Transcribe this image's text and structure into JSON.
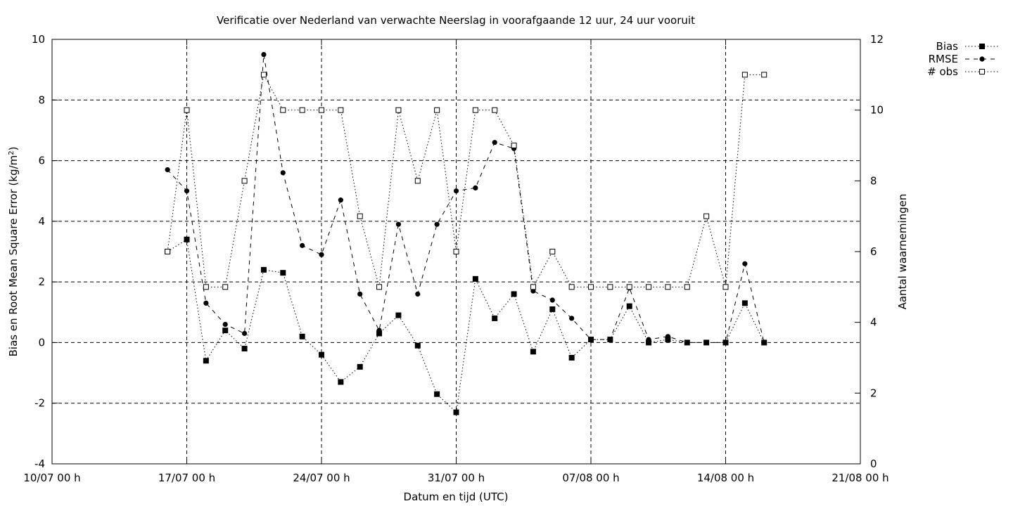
{
  "chart_data": {
    "type": "line",
    "title": "Verificatie over Nederland van verwachte Neerslag in voorafgaande 12 uur, 24 uur vooruit",
    "xlabel": "Datum en tijd (UTC)",
    "ylabel_left": "Bias en Root Mean Square Error (kg/m",
    "ylabel_left_sup": "2",
    "ylabel_left_end": ")",
    "ylabel_right": "Aantal waarnemingen",
    "x_ticks": [
      "10/07 00 h",
      "17/07 00 h",
      "24/07 00 h",
      "31/07 00 h",
      "07/08 00 h",
      "14/08 00 h",
      "21/08 00 h"
    ],
    "y_left_ticks": [
      "-4",
      "-2",
      "0",
      "2",
      "4",
      "6",
      "8",
      "10"
    ],
    "y_right_ticks": [
      "0",
      "2",
      "4",
      "6",
      "8",
      "10",
      "12"
    ],
    "y_left_range": [
      -4,
      10
    ],
    "y_right_range": [
      0,
      12
    ],
    "x_range": [
      "10/07",
      "21/08"
    ],
    "grid": true,
    "legend_position": "top-right outside",
    "x": [
      "16/07",
      "17/07",
      "18/07",
      "19/07",
      "20/07",
      "21/07",
      "22/07",
      "23/07",
      "24/07",
      "25/07",
      "26/07",
      "27/07",
      "28/07",
      "29/07",
      "30/07",
      "31/07",
      "01/08",
      "02/08",
      "03/08",
      "04/08",
      "05/08",
      "06/08",
      "07/08",
      "08/08",
      "09/08",
      "10/08",
      "11/08",
      "12/08",
      "13/08",
      "14/08",
      "15/08",
      "16/08"
    ],
    "series": [
      {
        "name": "Bias",
        "axis": "left",
        "marker": "filled-square",
        "line": "dotted",
        "values": [
          3.0,
          3.4,
          -0.6,
          0.4,
          -0.2,
          2.4,
          2.3,
          0.2,
          -0.4,
          -1.3,
          -0.8,
          0.3,
          0.9,
          -0.1,
          -1.7,
          -2.3,
          2.1,
          0.8,
          1.6,
          -0.3,
          1.1,
          -0.5,
          0.1,
          0.1,
          1.2,
          0.0,
          0.1,
          0.0,
          0.0,
          0.0,
          1.3,
          0.0
        ]
      },
      {
        "name": "RMSE",
        "axis": "left",
        "marker": "filled-circle",
        "line": "dashed",
        "values": [
          5.7,
          5.0,
          1.3,
          0.6,
          0.3,
          9.5,
          5.6,
          3.2,
          2.9,
          4.7,
          1.6,
          0.4,
          3.9,
          1.6,
          3.9,
          5.0,
          5.1,
          6.6,
          6.4,
          1.7,
          1.4,
          0.8,
          0.1,
          0.1,
          1.8,
          0.1,
          0.2,
          0.0,
          0.0,
          0.0,
          2.6,
          0.0
        ]
      },
      {
        "name": "# obs",
        "axis": "right",
        "marker": "open-square",
        "line": "dotted",
        "values": [
          6,
          10,
          5,
          5,
          8,
          11,
          10,
          10,
          10,
          10,
          7,
          5,
          10,
          8,
          10,
          6,
          10,
          10,
          9,
          5,
          6,
          5,
          5,
          5,
          5,
          5,
          5,
          5,
          7,
          5,
          11,
          11
        ]
      }
    ]
  }
}
